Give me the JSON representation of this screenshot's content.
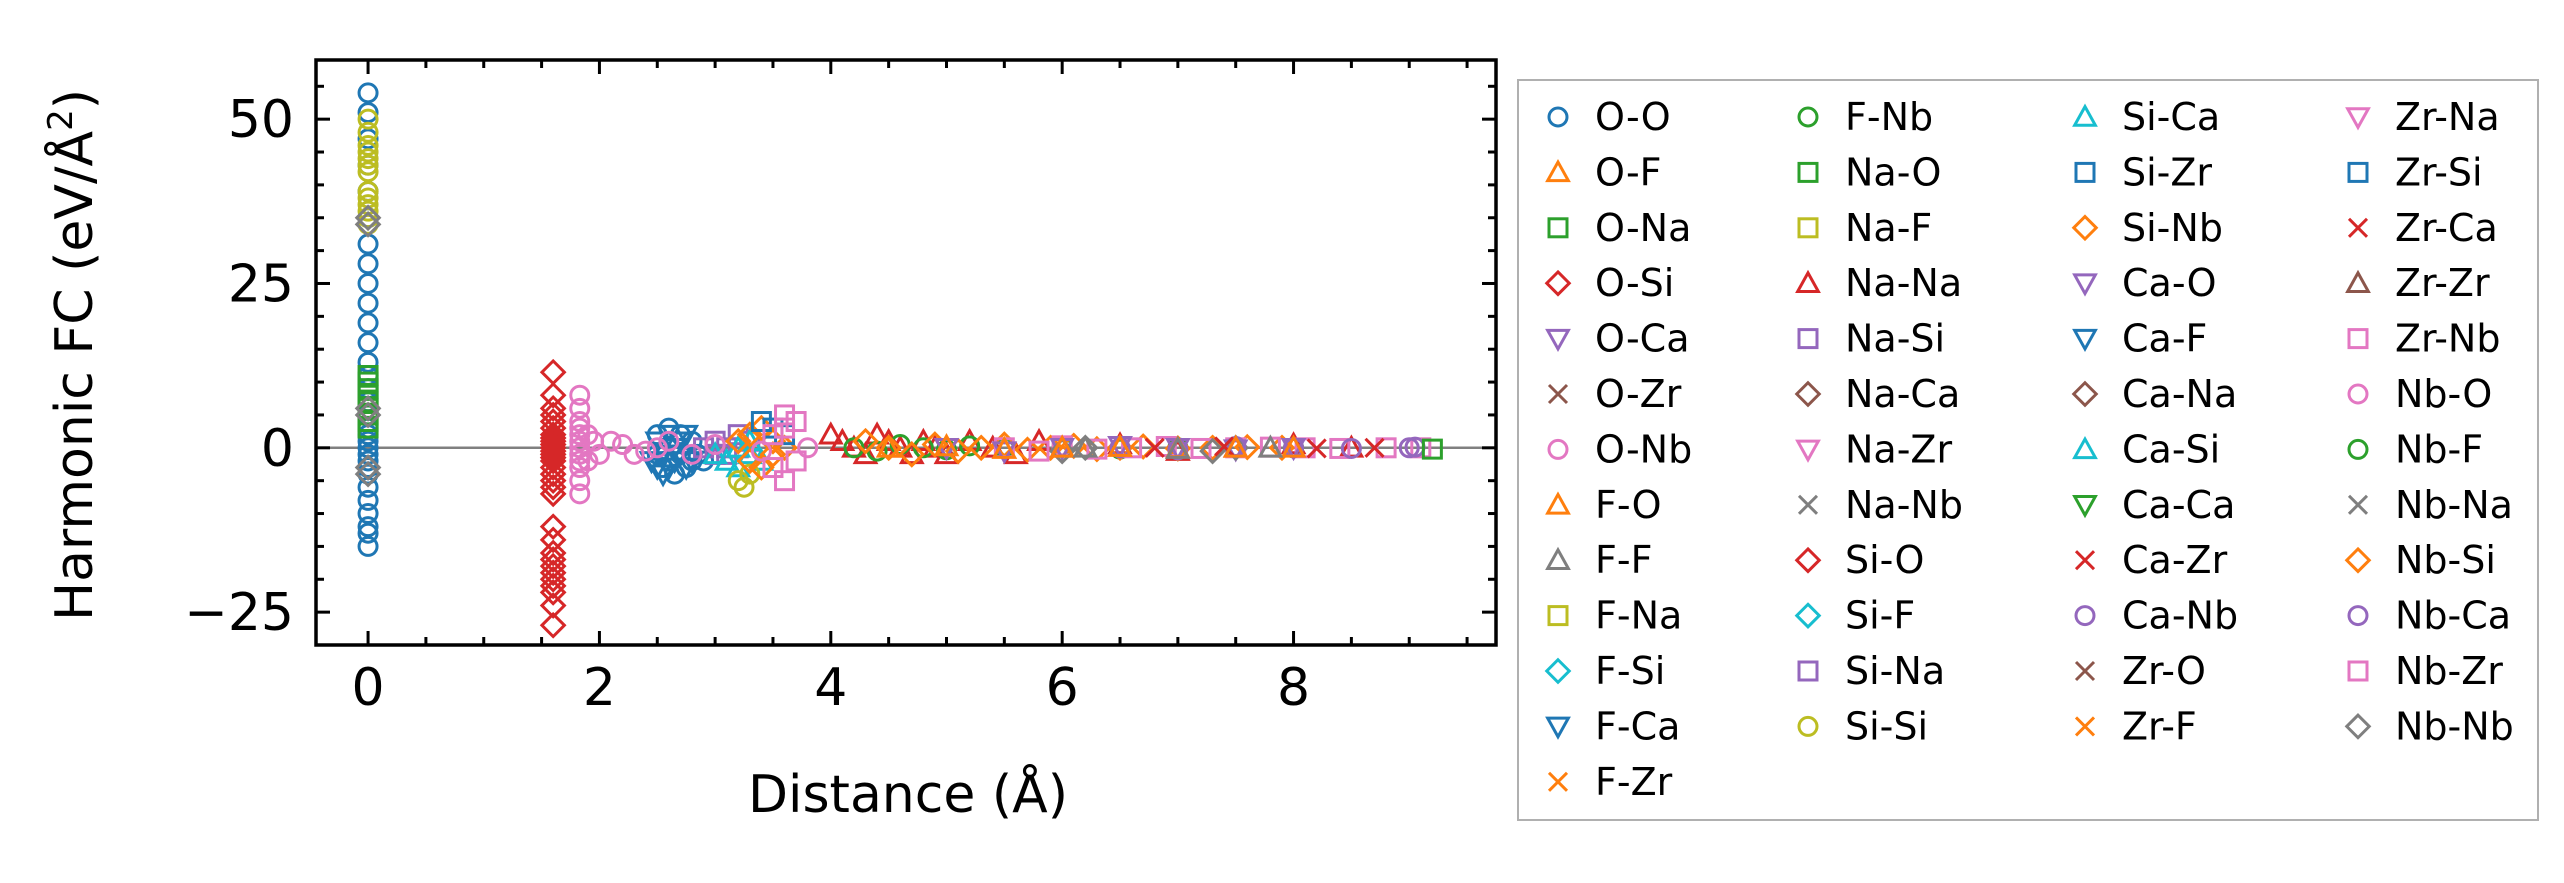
{
  "chart_data": {
    "type": "scatter",
    "xlabel": "Distance (Å)",
    "ylabel_main": "Harmonic FC (eV/Å",
    "ylabel_sup": "2",
    "ylabel_close": ")",
    "xlim": [
      -0.45,
      9.75
    ],
    "ylim": [
      -30,
      59
    ],
    "xticks": [
      0,
      2,
      4,
      6,
      8
    ],
    "xtick_labels": [
      "0",
      "2",
      "4",
      "6",
      "8"
    ],
    "yticks": [
      -25,
      0,
      25,
      50
    ],
    "ytick_labels": [
      "−25",
      "0",
      "25",
      "50"
    ],
    "zero_line": true,
    "grid": false,
    "legend_position": "outside-right",
    "legend_columns": 4,
    "colors": {
      "blue": "#1f77b4",
      "orange": "#ff7f0e",
      "green": "#2ca02c",
      "red": "#d62728",
      "purple": "#9467bd",
      "brown": "#8c564b",
      "pink": "#e377c2",
      "gray": "#7f7f7f",
      "olive": "#bcbd22",
      "cyan": "#17becf"
    },
    "series": [
      {
        "name": "O-O",
        "marker": "circle",
        "color": "#1f77b4"
      },
      {
        "name": "O-F",
        "marker": "triangle-up",
        "color": "#ff7f0e"
      },
      {
        "name": "O-Na",
        "marker": "square",
        "color": "#2ca02c"
      },
      {
        "name": "O-Si",
        "marker": "diamond",
        "color": "#d62728"
      },
      {
        "name": "O-Ca",
        "marker": "triangle-down",
        "color": "#9467bd"
      },
      {
        "name": "O-Zr",
        "marker": "x",
        "color": "#8c564b"
      },
      {
        "name": "O-Nb",
        "marker": "circle",
        "color": "#e377c2"
      },
      {
        "name": "F-O",
        "marker": "triangle-up",
        "color": "#ff7f0e"
      },
      {
        "name": "F-F",
        "marker": "triangle-up",
        "color": "#7f7f7f"
      },
      {
        "name": "F-Na",
        "marker": "square",
        "color": "#bcbd22"
      },
      {
        "name": "F-Si",
        "marker": "diamond",
        "color": "#17becf"
      },
      {
        "name": "F-Ca",
        "marker": "triangle-down",
        "color": "#1f77b4"
      },
      {
        "name": "F-Zr",
        "marker": "x",
        "color": "#ff7f0e"
      },
      {
        "name": "F-Nb",
        "marker": "circle",
        "color": "#2ca02c"
      },
      {
        "name": "Na-O",
        "marker": "square",
        "color": "#2ca02c"
      },
      {
        "name": "Na-F",
        "marker": "square",
        "color": "#bcbd22"
      },
      {
        "name": "Na-Na",
        "marker": "triangle-up",
        "color": "#d62728"
      },
      {
        "name": "Na-Si",
        "marker": "square",
        "color": "#9467bd"
      },
      {
        "name": "Na-Ca",
        "marker": "diamond",
        "color": "#8c564b"
      },
      {
        "name": "Na-Zr",
        "marker": "triangle-down",
        "color": "#e377c2"
      },
      {
        "name": "Na-Nb",
        "marker": "x",
        "color": "#7f7f7f"
      },
      {
        "name": "Si-O",
        "marker": "diamond",
        "color": "#d62728"
      },
      {
        "name": "Si-F",
        "marker": "diamond",
        "color": "#17becf"
      },
      {
        "name": "Si-Na",
        "marker": "square",
        "color": "#9467bd"
      },
      {
        "name": "Si-Si",
        "marker": "circle",
        "color": "#bcbd22"
      },
      {
        "name": "Si-Ca",
        "marker": "triangle-up",
        "color": "#17becf"
      },
      {
        "name": "Si-Zr",
        "marker": "square",
        "color": "#1f77b4"
      },
      {
        "name": "Si-Nb",
        "marker": "diamond",
        "color": "#ff7f0e"
      },
      {
        "name": "Ca-O",
        "marker": "triangle-down",
        "color": "#9467bd"
      },
      {
        "name": "Ca-F",
        "marker": "triangle-down",
        "color": "#1f77b4"
      },
      {
        "name": "Ca-Na",
        "marker": "diamond",
        "color": "#8c564b"
      },
      {
        "name": "Ca-Si",
        "marker": "triangle-up",
        "color": "#17becf"
      },
      {
        "name": "Ca-Ca",
        "marker": "triangle-down",
        "color": "#2ca02c"
      },
      {
        "name": "Ca-Zr",
        "marker": "x",
        "color": "#d62728"
      },
      {
        "name": "Ca-Nb",
        "marker": "circle",
        "color": "#9467bd"
      },
      {
        "name": "Zr-O",
        "marker": "x",
        "color": "#8c564b"
      },
      {
        "name": "Zr-F",
        "marker": "x",
        "color": "#ff7f0e"
      },
      {
        "name": "Zr-Na",
        "marker": "triangle-down",
        "color": "#e377c2"
      },
      {
        "name": "Zr-Si",
        "marker": "square",
        "color": "#1f77b4"
      },
      {
        "name": "Zr-Ca",
        "marker": "x",
        "color": "#d62728"
      },
      {
        "name": "Zr-Zr",
        "marker": "triangle-up",
        "color": "#8c564b"
      },
      {
        "name": "Zr-Nb",
        "marker": "square",
        "color": "#e377c2"
      },
      {
        "name": "Nb-O",
        "marker": "circle",
        "color": "#e377c2"
      },
      {
        "name": "Nb-F",
        "marker": "circle",
        "color": "#2ca02c"
      },
      {
        "name": "Nb-Na",
        "marker": "x",
        "color": "#7f7f7f"
      },
      {
        "name": "Nb-Si",
        "marker": "diamond",
        "color": "#ff7f0e"
      },
      {
        "name": "Nb-Ca",
        "marker": "circle",
        "color": "#9467bd"
      },
      {
        "name": "Nb-Zr",
        "marker": "square",
        "color": "#e377c2"
      },
      {
        "name": "Nb-Nb",
        "marker": "diamond",
        "color": "#7f7f7f"
      }
    ],
    "points": [
      {
        "series": "O-O",
        "x": [
          0,
          0,
          0,
          0,
          0,
          0,
          0,
          0,
          0,
          0,
          0,
          0,
          0,
          0,
          0,
          0,
          0,
          0,
          0,
          0,
          0,
          0,
          0,
          0,
          0,
          0,
          0,
          0,
          0,
          0,
          0
        ],
        "y": [
          54,
          51,
          47,
          43,
          39,
          35,
          31,
          28,
          25,
          22,
          19,
          16,
          13,
          11,
          9,
          7,
          5,
          3,
          2,
          1,
          0,
          -1,
          -2,
          -3,
          -4,
          -6,
          -8,
          -10,
          -12,
          -13,
          -15
        ]
      },
      {
        "series": "Si-Si",
        "x": [
          0,
          0,
          0,
          0,
          0,
          0,
          0,
          0,
          0,
          0,
          0,
          0,
          0
        ],
        "y": [
          50,
          48,
          46,
          45,
          44,
          43,
          42,
          39,
          38,
          37,
          36,
          35,
          34
        ]
      },
      {
        "series": "O-Na",
        "x": [
          0,
          0,
          0,
          0,
          0,
          0,
          0,
          0,
          0
        ],
        "y": [
          11,
          10,
          9,
          8,
          7,
          6,
          5,
          4,
          3
        ]
      },
      {
        "series": "Nb-Nb",
        "x": [
          0,
          0,
          0,
          0,
          0,
          0
        ],
        "y": [
          35,
          34,
          6,
          5,
          -3,
          -4
        ]
      },
      {
        "series": "O-Si",
        "x": [
          1.6,
          1.6,
          1.6,
          1.6,
          1.6,
          1.6,
          1.6,
          1.6,
          1.6,
          1.6,
          1.6,
          1.6,
          1.6,
          1.6,
          1.6,
          1.6,
          1.6,
          1.6,
          1.6,
          1.6,
          1.6,
          1.6,
          1.6,
          1.6,
          1.6,
          1.6,
          1.6,
          1.6,
          1.6,
          1.6,
          1.6
        ],
        "y": [
          11.5,
          8,
          6,
          5,
          4,
          3,
          2,
          1.5,
          1,
          0.5,
          0,
          -0.5,
          -1,
          -1.5,
          -2,
          -3,
          -4,
          -5,
          -6,
          -7,
          -12,
          -14,
          -16,
          -17,
          -18,
          -19,
          -20,
          -21,
          -22,
          -24,
          -27
        ]
      },
      {
        "series": "O-Nb",
        "x": [
          1.83,
          1.83,
          1.83,
          1.83,
          1.83,
          1.83,
          1.83,
          1.83,
          1.83,
          1.83,
          1.83,
          1.83,
          1.9,
          1.9,
          1.95,
          2.0
        ],
        "y": [
          8,
          6,
          4,
          3,
          2,
          1,
          0,
          -1,
          -2,
          -3,
          -5,
          -7,
          2,
          -2,
          1,
          -1
        ]
      },
      {
        "series": "Ca-F",
        "x": [
          2.45,
          2.5,
          2.55,
          2.6,
          2.65,
          2.7,
          2.75,
          2.8,
          2.5,
          2.6,
          2.7,
          2.55,
          2.65,
          2.75
        ],
        "y": [
          -2,
          -3,
          -4,
          -3,
          -2,
          -1,
          -3,
          -2,
          1,
          2,
          1,
          -1,
          0,
          2
        ]
      },
      {
        "series": "O-O",
        "x": [
          2.5,
          2.55,
          2.6,
          2.65,
          2.7,
          2.75,
          2.8,
          2.85,
          2.9,
          2.5,
          2.6,
          2.7,
          2.8
        ],
        "y": [
          -1,
          -3,
          -2,
          -4,
          -1,
          -3,
          -2,
          -1,
          -2,
          2,
          3,
          2,
          1
        ]
      },
      {
        "series": "Na-Si",
        "x": [
          2.9,
          3.0,
          3.1,
          3.2,
          3.3,
          3.0,
          3.1,
          3.2
        ],
        "y": [
          0,
          1,
          -1,
          0,
          1,
          -1,
          0,
          2
        ]
      },
      {
        "series": "Si-Ca",
        "x": [
          3.0,
          3.1,
          3.2,
          3.3,
          3.4,
          3.2,
          3.3
        ],
        "y": [
          -1,
          -2,
          -3,
          -1,
          -2,
          0,
          1
        ]
      },
      {
        "series": "Si-Si",
        "x": [
          3.2,
          3.25,
          3.3
        ],
        "y": [
          -5,
          -6,
          -4
        ]
      },
      {
        "series": "Si-Nb",
        "x": [
          3.2,
          3.3,
          3.4,
          3.5,
          3.6,
          3.3,
          3.4,
          3.5
        ],
        "y": [
          1,
          2,
          3,
          1,
          0,
          -2,
          -3,
          -1
        ]
      },
      {
        "series": "Zr-Si",
        "x": [
          3.4,
          3.5,
          3.6
        ],
        "y": [
          4,
          3,
          2
        ]
      },
      {
        "series": "Zr-Nb",
        "x": [
          3.5,
          3.6,
          3.7,
          3.5,
          3.6,
          3.7,
          3.6
        ],
        "y": [
          -3,
          -5,
          -2,
          2,
          3,
          4,
          5
        ]
      },
      {
        "series": "Na-Na",
        "x": [
          4.0,
          4.1,
          4.2,
          4.3,
          4.4,
          4.5,
          4.6,
          4.7,
          4.8,
          4.9,
          5.0,
          5.2,
          5.4,
          5.6,
          5.8,
          6.0,
          6.5,
          7.0,
          7.5,
          8.0,
          8.5
        ],
        "y": [
          2,
          1,
          0,
          -1,
          2,
          1,
          0,
          -1,
          1,
          0,
          -1,
          1,
          0,
          -1,
          1,
          0,
          0.5,
          -0.5,
          0,
          0.5,
          0
        ]
      },
      {
        "series": "F-Nb",
        "x": [
          4.2,
          4.4,
          4.6,
          4.8,
          5.0,
          5.2,
          5.5,
          6.0,
          6.5,
          7.0,
          7.5,
          8.0
        ],
        "y": [
          0,
          -0.5,
          0.5,
          0,
          -0.3,
          0.3,
          0,
          0.2,
          -0.2,
          0,
          0.1,
          0
        ]
      },
      {
        "series": "Nb-Si",
        "x": [
          4.3,
          4.5,
          4.7,
          4.9,
          5.1,
          5.3,
          5.5,
          5.7,
          5.9,
          6.1,
          6.3,
          6.5,
          6.7,
          7.0,
          7.3,
          7.6,
          7.9
        ],
        "y": [
          1,
          0,
          -1,
          0.5,
          -0.5,
          0,
          0.5,
          -0.3,
          0,
          0.3,
          -0.2,
          0,
          0.2,
          -0.1,
          0,
          0.1,
          0
        ]
      },
      {
        "series": "Zr-Nb",
        "x": [
          5.5,
          5.8,
          6.0,
          6.3,
          6.6,
          6.9,
          7.2,
          7.5,
          7.8,
          8.1,
          8.4,
          8.8,
          9.1
        ],
        "y": [
          0,
          -0.5,
          0.3,
          -0.2,
          0,
          0.2,
          -0.1,
          0,
          0.1,
          0,
          -0.1,
          0,
          0
        ]
      },
      {
        "series": "O-Ca",
        "x": [
          5.0,
          5.5,
          6.0,
          6.5,
          7.0,
          7.5,
          8.0
        ],
        "y": [
          0,
          -0.5,
          0,
          0.3,
          0,
          -0.2,
          0
        ]
      },
      {
        "series": "Nb-Nb",
        "x": [
          6.0,
          6.2,
          7.3,
          7.5
        ],
        "y": [
          -0.5,
          0,
          -0.5,
          0
        ]
      },
      {
        "series": "Nb-Ca",
        "x": [
          6.5,
          7.0,
          7.5,
          8.0,
          8.5,
          9.0,
          9.05
        ],
        "y": [
          0,
          -0.3,
          0.2,
          0,
          -0.1,
          0,
          0.1
        ]
      },
      {
        "series": "Na-O",
        "x": [
          9.2
        ],
        "y": [
          -0.2
        ]
      },
      {
        "series": "Zr-Ca",
        "x": [
          6.8,
          7.4,
          8.2,
          8.7
        ],
        "y": [
          0,
          0.2,
          -0.1,
          0
        ]
      },
      {
        "series": "O-F",
        "x": [
          4.5,
          5.0,
          5.5,
          6.0,
          6.5,
          7.0,
          7.5,
          8.0
        ],
        "y": [
          0,
          0.2,
          -0.2,
          0,
          0.1,
          -0.1,
          0,
          0
        ]
      },
      {
        "series": "F-F",
        "x": [
          6.2,
          7.0,
          7.8
        ],
        "y": [
          0,
          -0.2,
          0
        ]
      },
      {
        "series": "O-Nb",
        "x": [
          2.2,
          2.4,
          2.6,
          2.8,
          3.0,
          3.4,
          3.8
        ],
        "y": [
          0.5,
          -0.5,
          1,
          -1,
          0.5,
          -0.5,
          0
        ]
      },
      {
        "series": "Nb-O",
        "x": [
          2.1,
          2.3,
          2.5
        ],
        "y": [
          1,
          -1,
          0
        ]
      }
    ]
  }
}
